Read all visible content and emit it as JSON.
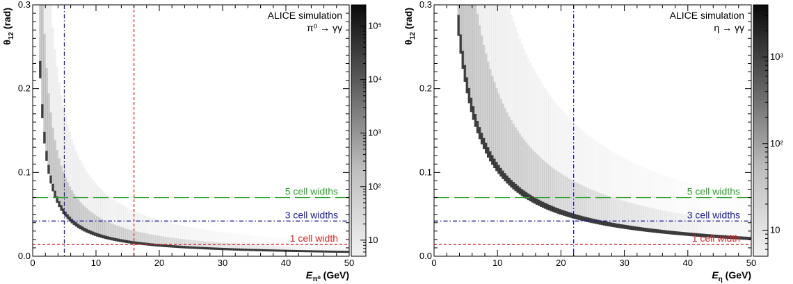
{
  "chart_data": [
    {
      "type": "heatmap",
      "annotation": [
        "ALICE simulation",
        "π⁰ → γγ"
      ],
      "xlabel": "E",
      "xlabel_sub": "π⁰",
      "xlabel_unit": "(GeV)",
      "ylabel": "θ",
      "ylabel_sub": "12",
      "ylabel_unit": "(rad)",
      "xlim": [
        0,
        50
      ],
      "ylim": [
        0,
        0.3
      ],
      "x_ticks": [
        0,
        10,
        20,
        30,
        40,
        50
      ],
      "y_ticks": [
        0.0,
        0.1,
        0.2,
        0.3
      ],
      "y_tick_labels": [
        "0.0",
        "0.1",
        "0.2",
        "0.3"
      ],
      "particle_mass_gev": 0.135,
      "colorbar": {
        "scale": "log",
        "min": 5,
        "max": 250000,
        "ticks": [
          10,
          100,
          1000,
          10000,
          100000
        ],
        "tick_labels": [
          "10",
          "10²",
          "10³",
          "10⁴",
          "10⁵"
        ]
      },
      "horizontal_lines": [
        {
          "label": "5 cell widths",
          "y": 0.07,
          "color": "#2ca02c",
          "style": "long-dash"
        },
        {
          "label": "3 cell widths",
          "y": 0.042,
          "color": "#1a1a9c",
          "style": "dash-dot"
        },
        {
          "label": "1 cell width",
          "y": 0.014,
          "color": "#d62728",
          "style": "dash"
        }
      ],
      "vertical_lines": [
        {
          "x": 5,
          "color": "#1a1a9c",
          "style": "dash-dot"
        },
        {
          "x": 16,
          "color": "#d62728",
          "style": "dash"
        }
      ]
    },
    {
      "type": "heatmap",
      "annotation": [
        "ALICE simulation",
        "η → γγ"
      ],
      "xlabel": "E",
      "xlabel_sub": "η",
      "xlabel_unit": "(GeV)",
      "ylabel": "θ",
      "ylabel_sub": "12",
      "ylabel_unit": "(rad)",
      "xlim": [
        0,
        50
      ],
      "ylim": [
        0,
        0.3
      ],
      "x_ticks": [
        0,
        10,
        20,
        30,
        40,
        50
      ],
      "y_ticks": [
        0.0,
        0.1,
        0.2,
        0.3
      ],
      "y_tick_labels": [
        "0.0",
        "0.1",
        "0.2",
        "0.3"
      ],
      "particle_mass_gev": 0.548,
      "colorbar": {
        "scale": "log",
        "min": 5,
        "max": 4000,
        "ticks": [
          10,
          100,
          1000
        ],
        "tick_labels": [
          "10",
          "10²",
          "10³"
        ]
      },
      "horizontal_lines": [
        {
          "label": "5 cell widths",
          "y": 0.07,
          "color": "#2ca02c",
          "style": "long-dash"
        },
        {
          "label": "3 cell widths",
          "y": 0.042,
          "color": "#1a1a9c",
          "style": "dash-dot"
        },
        {
          "label": "1 cell width",
          "y": 0.014,
          "color": "#d62728",
          "style": "dash"
        }
      ],
      "vertical_lines": [
        {
          "x": 22,
          "color": "#1a1a9c",
          "style": "dash-dot"
        }
      ]
    }
  ]
}
